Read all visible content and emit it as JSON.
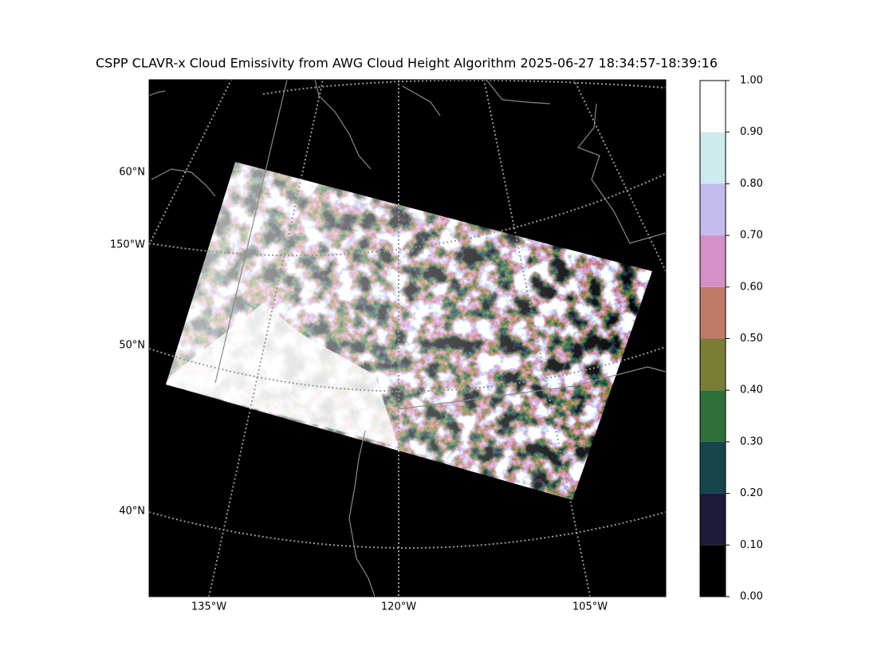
{
  "title": "CSPP CLAVR-x Cloud Emissivity from AWG Cloud Height Algorithm 2025-06-27 18:34:57-18:39:16",
  "map": {
    "lat_labels": [
      "60°N",
      "50°N",
      "40°N"
    ],
    "lon_labels": [
      "150°W",
      "135°W",
      "120°W",
      "105°W"
    ]
  },
  "colorbar": {
    "ticks": [
      {
        "value": 0,
        "label": "0.00"
      },
      {
        "value": 0.1,
        "label": "0.10"
      },
      {
        "value": 0.2,
        "label": "0.20"
      },
      {
        "value": 0.3,
        "label": "0.30"
      },
      {
        "value": 0.4,
        "label": "0.40"
      },
      {
        "value": 0.5,
        "label": "0.50"
      },
      {
        "value": 0.6,
        "label": "0.60"
      },
      {
        "value": 0.7,
        "label": "0.70"
      },
      {
        "value": 0.8,
        "label": "0.80"
      },
      {
        "value": 0.9,
        "label": "0.90"
      },
      {
        "value": 1,
        "label": "1.00"
      }
    ],
    "colors": [
      "#000000",
      "#1e1a3a",
      "#17454d",
      "#2e6f3a",
      "#7a7d35",
      "#c07a6a",
      "#d690c8",
      "#c4bcf0",
      "#cdeaec",
      "#ffffff"
    ]
  }
}
